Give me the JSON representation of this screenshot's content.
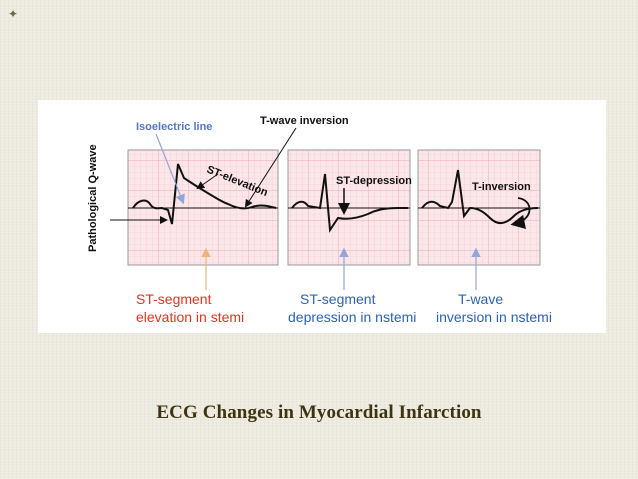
{
  "slide": {
    "menu_icon": "four-point-star-icon",
    "caption": "ECG Changes in Myocardial Infarction"
  },
  "figure": {
    "labels": {
      "q_wave": "Pathological Q-wave",
      "isoelectric": "Isoelectric line",
      "t_wave_inversion_top": "T-wave inversion",
      "st_elevation": "ST-elevation",
      "st_depression": "ST-depression",
      "t_inversion": "T-inversion"
    },
    "bottom_labels": {
      "panel1_line1": "ST-segment",
      "panel1_line2": "elevation in stemi",
      "panel2_line1": "ST-segment",
      "panel2_line2": "depression in nstemi",
      "panel3_line1": "T-wave",
      "panel3_line2": "inversion in nstemi"
    },
    "colors": {
      "grid_bg": "#fbe7ea",
      "grid_line": "#f2b7bf",
      "red_label": "#e2351f",
      "blue_label": "#2c63b8",
      "arrow_orange": "#f0b27a",
      "arrow_blue": "#8fa8d8"
    }
  }
}
